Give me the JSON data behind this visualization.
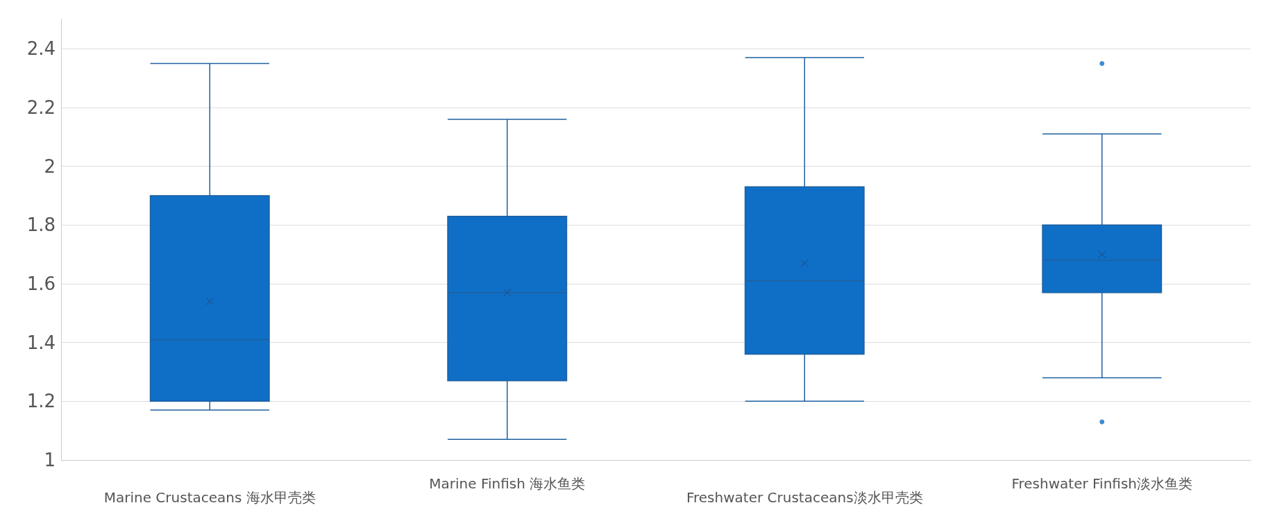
{
  "chart_data": {
    "type": "box",
    "categories": [
      "Marine Crustaceans 海水甲壳类",
      "Marine Finfish 海水鱼类",
      "Freshwater Crustaceans淡水甲壳类",
      "Freshwater Finfish淡水鱼类"
    ],
    "boxes": [
      {
        "low": 1.17,
        "q1": 1.2,
        "median": 1.41,
        "q3": 1.9,
        "high": 2.35,
        "mean": 1.54
      },
      {
        "low": 1.07,
        "q1": 1.27,
        "median": 1.57,
        "q3": 1.83,
        "high": 2.16,
        "mean": 1.57
      },
      {
        "low": 1.2,
        "q1": 1.36,
        "median": 1.61,
        "q3": 1.93,
        "high": 2.37,
        "mean": 1.67
      },
      {
        "low": 1.28,
        "q1": 1.57,
        "median": 1.68,
        "q3": 1.8,
        "high": 2.11,
        "mean": 1.7,
        "outliers": [
          2.35,
          1.13
        ]
      }
    ],
    "color": "#0f6fc6",
    "ylim": [
      1,
      2.5
    ],
    "yticks": [
      1,
      1.2,
      1.4,
      1.6,
      1.8,
      2,
      2.2,
      2.4
    ],
    "grid": "y"
  }
}
